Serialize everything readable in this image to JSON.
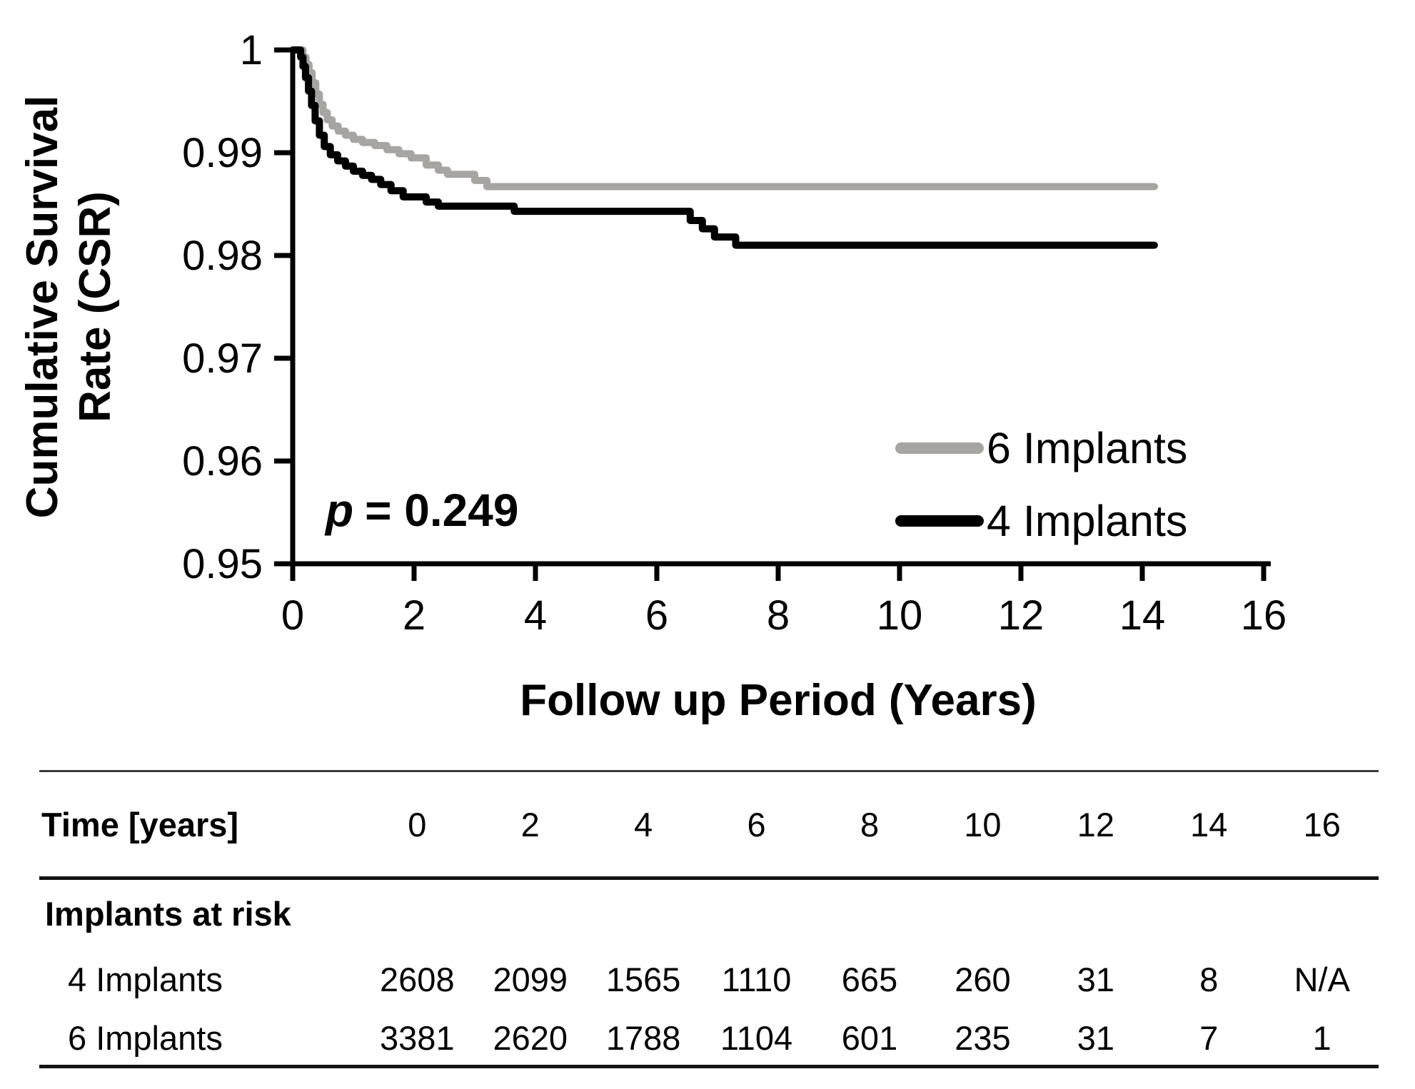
{
  "chart_data": {
    "type": "line",
    "subtype": "step-survival",
    "title": "",
    "xlabel": "Follow up Period (Years)",
    "ylabel_lines": [
      "Cumulative Survival",
      "Rate (CSR)"
    ],
    "xlim": [
      0,
      16
    ],
    "ylim": [
      0.95,
      1
    ],
    "grid": false,
    "legend_position": "inside-right",
    "xticks": [
      0,
      2,
      4,
      6,
      8,
      10,
      12,
      14,
      16
    ],
    "xtick_labels": [
      "0",
      "2",
      "4",
      "6",
      "8",
      "10",
      "12",
      "14",
      "16"
    ],
    "yticks": [
      1,
      0.99,
      0.98,
      0.97,
      0.96,
      0.95
    ],
    "ytick_labels": [
      "1",
      "0.99",
      "0.98",
      "0.97",
      "0.96",
      "0.95"
    ],
    "annotation": {
      "lead": "p",
      "rest": "= 0.249"
    },
    "colors": {
      "gray_series": "#a7a5a2",
      "black_series": "#000000",
      "axis": "#000000"
    },
    "series": [
      {
        "name": "6 Implants",
        "color": "#a7a5a2",
        "final_value": 0.9867,
        "end_time": 14.2,
        "points": [
          [
            0,
            1.0
          ],
          [
            0.17,
            0.9993
          ],
          [
            0.22,
            0.9986
          ],
          [
            0.27,
            0.9978
          ],
          [
            0.32,
            0.9968
          ],
          [
            0.38,
            0.9957
          ],
          [
            0.44,
            0.9947
          ],
          [
            0.5,
            0.9939
          ],
          [
            0.57,
            0.9932
          ],
          [
            0.65,
            0.9926
          ],
          [
            0.75,
            0.9921
          ],
          [
            0.87,
            0.9917
          ],
          [
            1.0,
            0.9913
          ],
          [
            1.15,
            0.991
          ],
          [
            1.35,
            0.9907
          ],
          [
            1.55,
            0.9903
          ],
          [
            1.75,
            0.9899
          ],
          [
            1.95,
            0.9895
          ],
          [
            2.2,
            0.9888
          ],
          [
            2.4,
            0.9883
          ],
          [
            2.55,
            0.9879
          ],
          [
            3.0,
            0.9873
          ],
          [
            3.2,
            0.9867
          ],
          [
            14.2,
            0.9867
          ]
        ]
      },
      {
        "name": "4 Implants",
        "color": "#000000",
        "final_value": 0.981,
        "end_time": 14.2,
        "points": [
          [
            0,
            1.0
          ],
          [
            0.13,
            0.9993
          ],
          [
            0.17,
            0.9984
          ],
          [
            0.21,
            0.9973
          ],
          [
            0.26,
            0.996
          ],
          [
            0.31,
            0.9946
          ],
          [
            0.37,
            0.9931
          ],
          [
            0.44,
            0.9917
          ],
          [
            0.52,
            0.9906
          ],
          [
            0.62,
            0.9898
          ],
          [
            0.74,
            0.9892
          ],
          [
            0.87,
            0.9887
          ],
          [
            1.0,
            0.9882
          ],
          [
            1.15,
            0.9878
          ],
          [
            1.3,
            0.9874
          ],
          [
            1.45,
            0.9869
          ],
          [
            1.62,
            0.9863
          ],
          [
            1.82,
            0.9857
          ],
          [
            2.2,
            0.9852
          ],
          [
            2.4,
            0.9848
          ],
          [
            3.65,
            0.9843
          ],
          [
            6.55,
            0.9834
          ],
          [
            6.75,
            0.9826
          ],
          [
            6.95,
            0.9818
          ],
          [
            7.3,
            0.981
          ],
          [
            14.2,
            0.981
          ]
        ]
      }
    ]
  },
  "risk_table": {
    "time_header": "Time [years]",
    "times": [
      "0",
      "2",
      "4",
      "6",
      "8",
      "10",
      "12",
      "14",
      "16"
    ],
    "section_header": "Implants at risk",
    "rows": [
      {
        "label": "4 Implants",
        "values": [
          "2608",
          "2099",
          "1565",
          "1110",
          "665",
          "260",
          "31",
          "8",
          "N/A"
        ]
      },
      {
        "label": "6 Implants",
        "values": [
          "3381",
          "2620",
          "1788",
          "1104",
          "601",
          "235",
          "31",
          "7",
          "1"
        ]
      }
    ]
  }
}
